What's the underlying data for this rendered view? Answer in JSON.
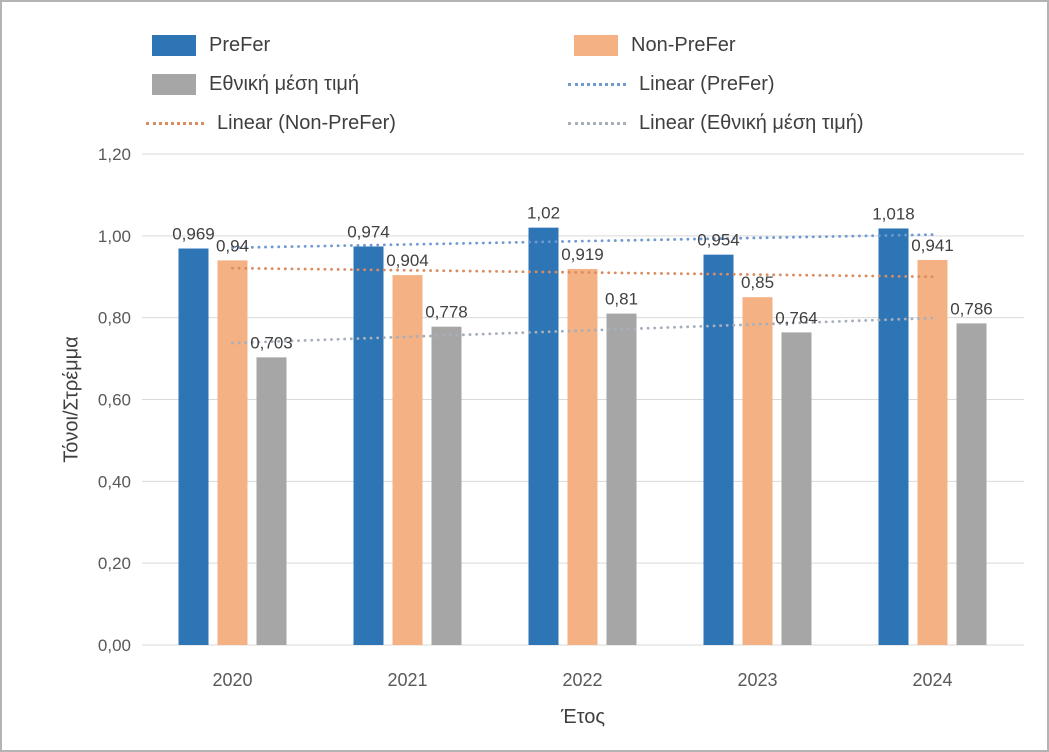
{
  "window": {
    "background": "#ffffff",
    "border_color": "#b3b3b3"
  },
  "chart_data": {
    "type": "bar",
    "title": "",
    "xlabel": "Έτος",
    "ylabel": "Τόνοι/Στρέμμα",
    "categories": [
      "2020",
      "2021",
      "2022",
      "2023",
      "2024"
    ],
    "series": [
      {
        "name": "PreFer",
        "color": "#2e75b6",
        "values": [
          0.969,
          0.974,
          1.02,
          0.954,
          1.018
        ],
        "labels": [
          "0,969",
          "0,974",
          "1,02",
          "0,954",
          "1,018"
        ]
      },
      {
        "name": "Non-PreFer",
        "color": "#f4b183",
        "values": [
          0.94,
          0.904,
          0.919,
          0.85,
          0.941
        ],
        "labels": [
          "0,94",
          "0,904",
          "0,919",
          "0,85",
          "0,941"
        ]
      },
      {
        "name": "Εθνική μέση τιμή",
        "color": "#a6a6a6",
        "values": [
          0.703,
          0.778,
          0.81,
          0.764,
          0.786
        ],
        "labels": [
          "0,703",
          "0,778",
          "0,81",
          "0,764",
          "0,786"
        ]
      }
    ],
    "trendlines": [
      {
        "name": "Linear (PreFer)",
        "color": "#6f9ad0",
        "start": 0.971,
        "end": 1.003
      },
      {
        "name": "Linear (Non-PreFer)",
        "color": "#d98c60",
        "start": 0.921,
        "end": 0.9
      },
      {
        "name": "Linear (Εθνική μέση τιμή)",
        "color": "#a8afbb",
        "start": 0.738,
        "end": 0.799
      }
    ],
    "ylim": [
      0,
      1.2
    ],
    "yticks": [
      {
        "value": 0.0,
        "label": "0,00"
      },
      {
        "value": 0.2,
        "label": "0,20"
      },
      {
        "value": 0.4,
        "label": "0,40"
      },
      {
        "value": 0.6,
        "label": "0,60"
      },
      {
        "value": 0.8,
        "label": "0,80"
      },
      {
        "value": 1.0,
        "label": "1,00"
      },
      {
        "value": 1.2,
        "label": "1,20"
      }
    ],
    "grid": true,
    "gridline_color": "#d9d9d9",
    "legend": {
      "position": "top",
      "items": [
        {
          "label": "PreFer",
          "type": "box",
          "color": "#2e75b6"
        },
        {
          "label": "Non-PreFer",
          "type": "box",
          "color": "#f4b183"
        },
        {
          "label": "Εθνική μέση τιμή",
          "type": "box",
          "color": "#a6a6a6"
        },
        {
          "label": "Linear (PreFer)",
          "type": "line",
          "color": "#6f9ad0"
        },
        {
          "label": "Linear (Non-PreFer)",
          "type": "line",
          "color": "#d98c60"
        },
        {
          "label": "Linear (Εθνική μέση τιμή)",
          "type": "line",
          "color": "#a8afbb"
        }
      ]
    },
    "text_colors": {
      "data_labels": "#404040",
      "tick_labels": "#595959",
      "axis_titles": "#3f3f3f"
    }
  }
}
